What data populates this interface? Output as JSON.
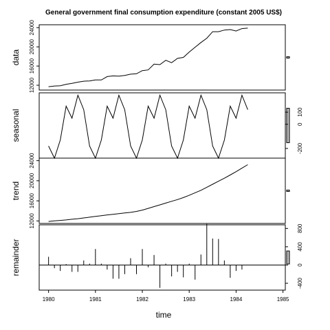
{
  "chart_data": {
    "type": "line",
    "title": "General government final consumption expenditure (constant 2005 US$)",
    "xlabel": "time",
    "x_ticks": [
      1980,
      1981,
      1982,
      1983,
      1984,
      1985
    ],
    "x_tick_labels": [
      "1980",
      "1981",
      "1982",
      "1983",
      "1984",
      "1985"
    ],
    "x_range": [
      1979.8,
      1985.05
    ],
    "time_start": 1980,
    "frequency": 8,
    "panels": [
      {
        "name": "data",
        "type": "line",
        "ylabel": "data",
        "y_range": [
          11000,
          24600
        ],
        "y_ticks": [
          12000,
          16000,
          20000,
          24000
        ],
        "y_tick_labels": [
          "12000",
          "16000",
          "20000",
          "24000"
        ],
        "tick_side": "left",
        "values": [
          11700,
          11850,
          11900,
          12200,
          12400,
          12650,
          12850,
          12900,
          13100,
          13100,
          13800,
          13950,
          13900,
          14050,
          14300,
          14400,
          15050,
          15200,
          16400,
          16300,
          17200,
          16700,
          17600,
          17800,
          18900,
          19900,
          20900,
          21800,
          23150,
          23150,
          23500,
          23600,
          23300,
          23800,
          23900
        ],
        "scale_bar_height": 285
      },
      {
        "name": "seasonal",
        "type": "line",
        "ylabel": "seasonal",
        "y_range": [
          -280,
          260
        ],
        "y_ticks": [
          -200,
          0,
          100
        ],
        "y_tick_labels": [
          "-200",
          "0",
          "100"
        ],
        "tick_side": "right",
        "values": [
          -180,
          -280,
          -130,
          150,
          50,
          240,
          120,
          -180,
          -280,
          -130,
          150,
          50,
          240,
          120,
          -180,
          -280,
          -130,
          150,
          50,
          240,
          120,
          -180,
          -280,
          -130,
          150,
          50,
          240,
          120,
          -180,
          -280,
          -130,
          150,
          50,
          240,
          120
        ],
        "scale_bar_height": 285
      },
      {
        "name": "trend",
        "type": "line",
        "ylabel": "trend",
        "y_range": [
          11500,
          24500
        ],
        "y_ticks": [
          12000,
          16000,
          20000,
          24000
        ],
        "y_tick_labels": [
          "12000",
          "16000",
          "20000",
          "24000"
        ],
        "tick_side": "left",
        "values": [
          11900,
          12000,
          12100,
          12200,
          12330,
          12450,
          12600,
          12750,
          12900,
          13050,
          13200,
          13320,
          13450,
          13580,
          13700,
          13900,
          14150,
          14500,
          14850,
          15200,
          15550,
          15900,
          16250,
          16650,
          17100,
          17600,
          18100,
          18700,
          19300,
          19900,
          20500,
          21150,
          21800,
          22500,
          23200
        ],
        "scale_bar_height": 285
      },
      {
        "name": "remainder",
        "type": "bar",
        "ylabel": "remainder",
        "y_range": [
          -550,
          880
        ],
        "y_ticks": [
          -400,
          0,
          400,
          800
        ],
        "y_tick_labels": [
          "-400",
          "0",
          "400",
          "800"
        ],
        "tick_side": "right",
        "values": [
          180,
          -70,
          -130,
          20,
          -150,
          -150,
          100,
          30,
          350,
          30,
          -100,
          -300,
          -300,
          -200,
          150,
          -200,
          350,
          -50,
          220,
          -500,
          30,
          -250,
          -150,
          -270,
          30,
          -320,
          230,
          900,
          580,
          570,
          100,
          -280,
          -130,
          -100,
          0
        ],
        "scale_bar_height": 285
      }
    ]
  }
}
